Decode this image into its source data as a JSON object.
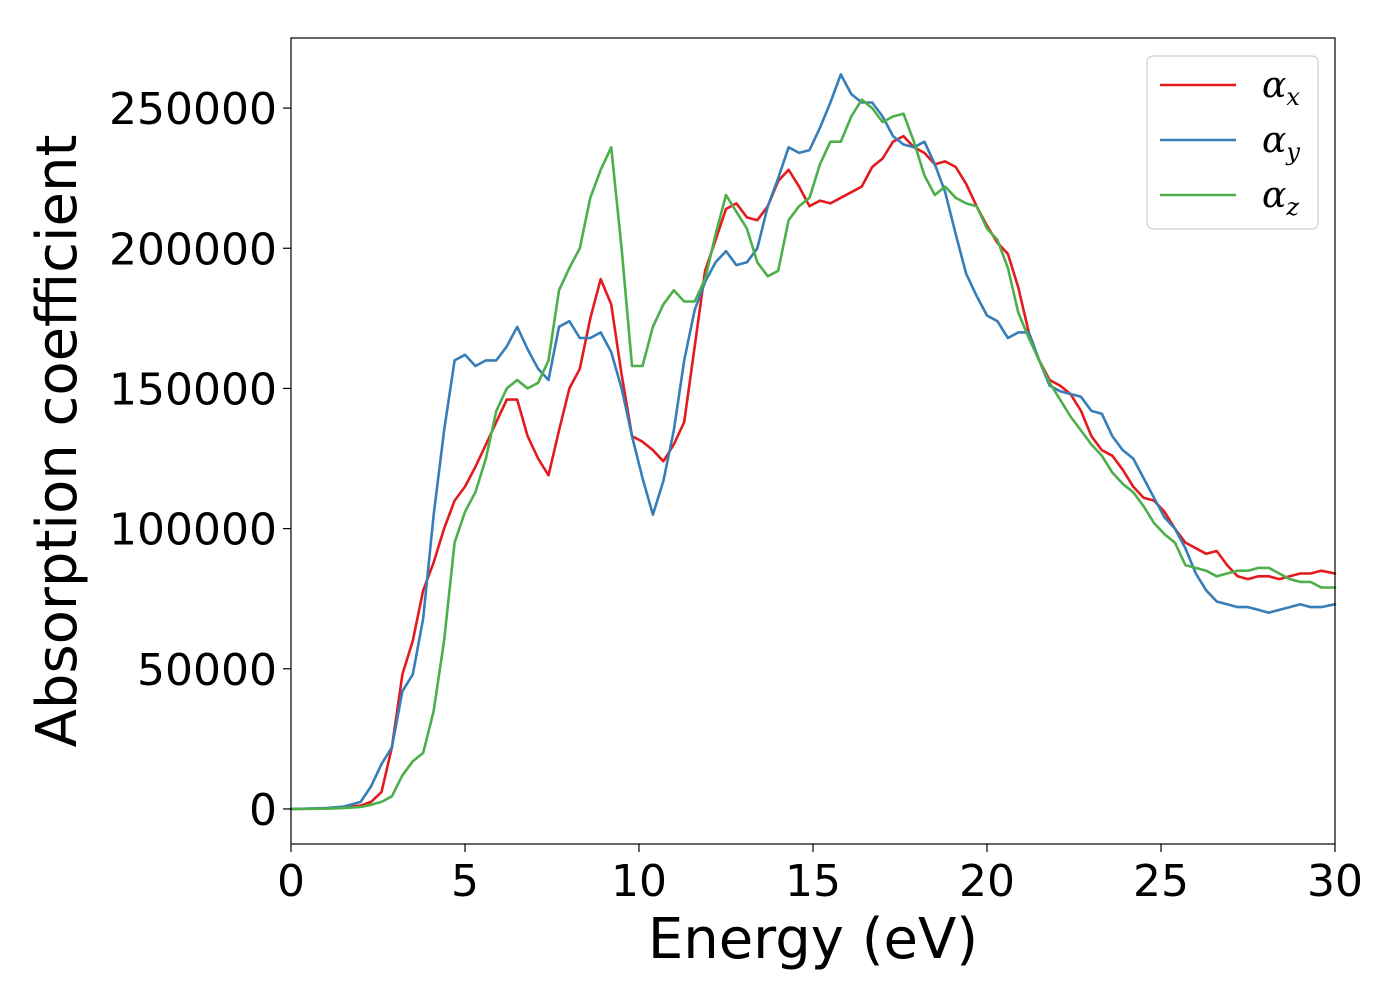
{
  "chart_data": {
    "type": "line",
    "xlabel": "Energy (eV)",
    "ylabel": "Absorption coefficient",
    "xlim": [
      0,
      30
    ],
    "ylim": [
      -12500,
      275000
    ],
    "xticks": [
      0,
      5,
      10,
      15,
      20,
      25,
      30
    ],
    "yticks": [
      0,
      50000,
      100000,
      150000,
      200000,
      250000
    ],
    "legend_position": "top-right",
    "grid": false,
    "series": [
      {
        "name": "αx",
        "symbol": "α",
        "subscript": "x",
        "color": "#e41a1c",
        "x": [
          0,
          1,
          1.5,
          2,
          2.3,
          2.6,
          2.9,
          3.2,
          3.5,
          3.8,
          4.1,
          4.4,
          4.7,
          5.0,
          5.3,
          5.6,
          5.9,
          6.2,
          6.5,
          6.8,
          7.1,
          7.4,
          7.7,
          8.0,
          8.3,
          8.6,
          8.9,
          9.2,
          9.5,
          9.8,
          10.1,
          10.4,
          10.7,
          11.0,
          11.3,
          11.6,
          11.9,
          12.2,
          12.5,
          12.8,
          13.1,
          13.4,
          13.7,
          14.0,
          14.3,
          14.6,
          14.9,
          15.2,
          15.5,
          15.8,
          16.1,
          16.4,
          16.7,
          17.0,
          17.3,
          17.6,
          17.9,
          18.2,
          18.5,
          18.8,
          19.1,
          19.4,
          19.7,
          20.0,
          20.3,
          20.6,
          20.9,
          21.2,
          21.5,
          21.8,
          22.1,
          22.4,
          22.7,
          23.0,
          23.3,
          23.6,
          23.9,
          24.2,
          24.5,
          24.8,
          25.1,
          25.4,
          25.7,
          26.0,
          26.3,
          26.6,
          26.9,
          27.2,
          27.5,
          27.8,
          28.1,
          28.4,
          28.7,
          29.0,
          29.3,
          29.6,
          30.0
        ],
        "y": [
          0,
          200,
          500,
          1200,
          2500,
          6000,
          22000,
          48000,
          60000,
          78000,
          88000,
          100000,
          110000,
          115000,
          122000,
          130000,
          138000,
          146000,
          146000,
          133000,
          125000,
          119000,
          135000,
          150000,
          157000,
          175000,
          189000,
          180000,
          155000,
          133000,
          131000,
          128000,
          124000,
          130000,
          138000,
          165000,
          192000,
          203000,
          214000,
          216000,
          211000,
          210000,
          215000,
          224000,
          228000,
          222000,
          215000,
          217000,
          216000,
          218000,
          220000,
          222000,
          229000,
          232000,
          238000,
          240000,
          236000,
          234000,
          230000,
          231000,
          229000,
          223000,
          215000,
          208000,
          202000,
          198000,
          186000,
          170000,
          160000,
          153000,
          151000,
          148000,
          142000,
          133000,
          128000,
          126000,
          121000,
          115000,
          111000,
          110000,
          106000,
          100000,
          95000,
          93000,
          91000,
          92000,
          87000,
          83000,
          82000,
          83000,
          83000,
          82000,
          83000,
          84000,
          84000,
          85000,
          84000
        ]
      },
      {
        "name": "αy",
        "symbol": "α",
        "subscript": "y",
        "color": "#377eb8",
        "x": [
          0,
          1,
          1.5,
          2,
          2.3,
          2.6,
          2.9,
          3.2,
          3.5,
          3.8,
          4.1,
          4.4,
          4.7,
          5.0,
          5.3,
          5.6,
          5.9,
          6.2,
          6.5,
          6.8,
          7.1,
          7.4,
          7.7,
          8.0,
          8.3,
          8.6,
          8.9,
          9.2,
          9.5,
          9.8,
          10.1,
          10.4,
          10.7,
          11.0,
          11.3,
          11.6,
          11.9,
          12.2,
          12.5,
          12.8,
          13.1,
          13.4,
          13.7,
          14.0,
          14.3,
          14.6,
          14.9,
          15.2,
          15.5,
          15.8,
          16.1,
          16.4,
          16.7,
          17.0,
          17.3,
          17.6,
          17.9,
          18.2,
          18.5,
          18.8,
          19.1,
          19.4,
          19.7,
          20.0,
          20.3,
          20.6,
          20.9,
          21.2,
          21.5,
          21.8,
          22.1,
          22.4,
          22.7,
          23.0,
          23.3,
          23.6,
          23.9,
          24.2,
          24.5,
          24.8,
          25.1,
          25.4,
          25.7,
          26.0,
          26.3,
          26.6,
          26.9,
          27.2,
          27.5,
          27.8,
          28.1,
          28.4,
          28.7,
          29.0,
          29.3,
          29.6,
          30.0
        ],
        "y": [
          0,
          300,
          800,
          2500,
          8000,
          16000,
          22000,
          42000,
          48000,
          68000,
          105000,
          135000,
          160000,
          162000,
          158000,
          160000,
          160000,
          165000,
          172000,
          164000,
          157000,
          153000,
          172000,
          174000,
          168000,
          168000,
          170000,
          163000,
          150000,
          133000,
          118000,
          105000,
          117000,
          135000,
          160000,
          178000,
          188000,
          195000,
          199000,
          194000,
          195000,
          200000,
          215000,
          225000,
          236000,
          234000,
          235000,
          243000,
          252000,
          262000,
          255000,
          252000,
          252000,
          247000,
          240000,
          237000,
          236000,
          238000,
          230000,
          220000,
          205000,
          191000,
          183000,
          176000,
          174000,
          168000,
          170000,
          170000,
          160000,
          151000,
          149000,
          148000,
          147000,
          142000,
          141000,
          133000,
          128000,
          125000,
          118000,
          111000,
          104000,
          100000,
          93000,
          84000,
          78000,
          74000,
          73000,
          72000,
          72000,
          71000,
          70000,
          71000,
          72000,
          73000,
          72000,
          72000,
          73000
        ]
      },
      {
        "name": "αz",
        "symbol": "α",
        "subscript": "z",
        "color": "#4daf4a",
        "x": [
          0,
          1,
          1.5,
          2,
          2.3,
          2.6,
          2.9,
          3.2,
          3.5,
          3.8,
          4.1,
          4.4,
          4.7,
          5.0,
          5.3,
          5.6,
          5.9,
          6.2,
          6.5,
          6.8,
          7.1,
          7.4,
          7.7,
          8.0,
          8.3,
          8.6,
          8.9,
          9.2,
          9.5,
          9.8,
          10.1,
          10.4,
          10.7,
          11.0,
          11.3,
          11.6,
          11.9,
          12.2,
          12.5,
          12.8,
          13.1,
          13.4,
          13.7,
          14.0,
          14.3,
          14.6,
          14.9,
          15.2,
          15.5,
          15.8,
          16.1,
          16.4,
          16.7,
          17.0,
          17.3,
          17.6,
          17.9,
          18.2,
          18.5,
          18.8,
          19.1,
          19.4,
          19.7,
          20.0,
          20.3,
          20.6,
          20.9,
          21.2,
          21.5,
          21.8,
          22.1,
          22.4,
          22.7,
          23.0,
          23.3,
          23.6,
          23.9,
          24.2,
          24.5,
          24.8,
          25.1,
          25.4,
          25.7,
          26.0,
          26.3,
          26.6,
          26.9,
          27.2,
          27.5,
          27.8,
          28.1,
          28.4,
          28.7,
          29.0,
          29.3,
          29.6,
          30.0
        ],
        "y": [
          0,
          100,
          300,
          700,
          1500,
          2500,
          4500,
          12000,
          17000,
          20000,
          35000,
          60000,
          95000,
          106000,
          113000,
          125000,
          142000,
          150000,
          153000,
          150000,
          152000,
          160000,
          185000,
          193000,
          200000,
          218000,
          228000,
          236000,
          200000,
          158000,
          158000,
          172000,
          180000,
          185000,
          181000,
          181000,
          189000,
          205000,
          219000,
          213000,
          207000,
          195000,
          190000,
          192000,
          210000,
          215000,
          218000,
          230000,
          238000,
          238000,
          247000,
          253000,
          250000,
          245000,
          247000,
          248000,
          238000,
          226000,
          219000,
          222000,
          218000,
          216000,
          215000,
          207000,
          203000,
          193000,
          177000,
          168000,
          160000,
          152000,
          146000,
          140000,
          135000,
          130000,
          126000,
          120000,
          116000,
          113000,
          108000,
          102000,
          98000,
          95000,
          87000,
          86000,
          85000,
          83000,
          84000,
          85000,
          85000,
          86000,
          86000,
          84000,
          82000,
          81000,
          81000,
          79000,
          79000
        ]
      }
    ]
  }
}
